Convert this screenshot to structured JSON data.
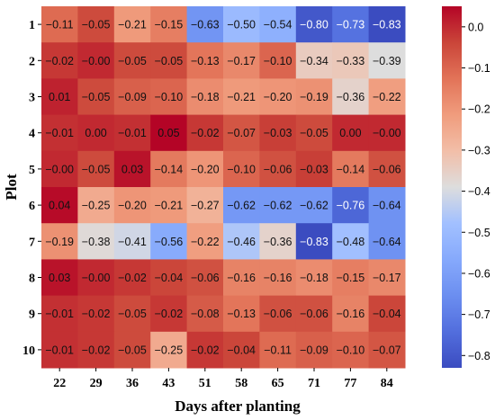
{
  "chart_data": {
    "type": "heatmap",
    "xlabel": "Days after planting",
    "ylabel": "Plot",
    "x_categories": [
      "22",
      "29",
      "36",
      "43",
      "51",
      "58",
      "65",
      "71",
      "77",
      "84"
    ],
    "y_categories": [
      "1",
      "2",
      "3",
      "4",
      "5",
      "6",
      "7",
      "8",
      "9",
      "10"
    ],
    "values": [
      [
        -0.11,
        -0.05,
        -0.21,
        -0.15,
        -0.63,
        -0.5,
        -0.54,
        -0.8,
        -0.73,
        -0.83
      ],
      [
        -0.02,
        -0.0,
        -0.05,
        -0.05,
        -0.13,
        -0.17,
        -0.1,
        -0.34,
        -0.33,
        -0.39
      ],
      [
        0.01,
        -0.05,
        -0.09,
        -0.1,
        -0.18,
        -0.21,
        -0.2,
        -0.19,
        -0.36,
        -0.22
      ],
      [
        -0.01,
        0.0,
        -0.01,
        0.05,
        -0.02,
        -0.07,
        -0.03,
        -0.05,
        0.0,
        -0.0
      ],
      [
        -0.0,
        -0.05,
        0.03,
        -0.14,
        -0.2,
        -0.1,
        -0.06,
        -0.03,
        -0.14,
        -0.06
      ],
      [
        0.04,
        -0.25,
        -0.2,
        -0.21,
        -0.27,
        -0.62,
        -0.62,
        -0.62,
        -0.76,
        -0.64
      ],
      [
        -0.19,
        -0.38,
        -0.41,
        -0.56,
        -0.22,
        -0.46,
        -0.36,
        -0.83,
        -0.48,
        -0.64
      ],
      [
        0.03,
        -0.0,
        -0.02,
        -0.04,
        -0.06,
        -0.16,
        -0.16,
        -0.18,
        -0.15,
        -0.17
      ],
      [
        -0.01,
        -0.02,
        -0.05,
        -0.02,
        -0.08,
        -0.13,
        -0.06,
        -0.06,
        -0.16,
        -0.04
      ],
      [
        -0.01,
        -0.02,
        -0.05,
        -0.25,
        -0.02,
        -0.04,
        -0.11,
        -0.09,
        -0.1,
        -0.07
      ]
    ],
    "labels": [
      [
        "−0.11",
        "−0.05",
        "−0.21",
        "−0.15",
        "−0.63",
        "−0.50",
        "−0.54",
        "−0.80",
        "−0.73",
        "−0.83"
      ],
      [
        "−0.02",
        "−0.00",
        "−0.05",
        "−0.05",
        "−0.13",
        "−0.17",
        "−0.10",
        "−0.34",
        "−0.33",
        "−0.39"
      ],
      [
        "0.01",
        "−0.05",
        "−0.09",
        "−0.10",
        "−0.18",
        "−0.21",
        "−0.20",
        "−0.19",
        "−0.36",
        "−0.22"
      ],
      [
        "−0.01",
        "0.00",
        "−0.01",
        "0.05",
        "−0.02",
        "−0.07",
        "−0.03",
        "−0.05",
        "0.00",
        "−0.00"
      ],
      [
        "−0.00",
        "−0.05",
        "0.03",
        "−0.14",
        "−0.20",
        "−0.10",
        "−0.06",
        "−0.03",
        "−0.14",
        "−0.06"
      ],
      [
        "0.04",
        "−0.25",
        "−0.20",
        "−0.21",
        "−0.27",
        "−0.62",
        "−0.62",
        "−0.62",
        "−0.76",
        "−0.64"
      ],
      [
        "−0.19",
        "−0.38",
        "−0.41",
        "−0.56",
        "−0.22",
        "−0.46",
        "−0.36",
        "−0.83",
        "−0.48",
        "−0.64"
      ],
      [
        "0.03",
        "−0.00",
        "−0.02",
        "−0.04",
        "−0.06",
        "−0.16",
        "−0.16",
        "−0.18",
        "−0.15",
        "−0.17"
      ],
      [
        "−0.01",
        "−0.02",
        "−0.05",
        "−0.02",
        "−0.08",
        "−0.13",
        "−0.06",
        "−0.06",
        "−0.16",
        "−0.04"
      ],
      [
        "−0.01",
        "−0.02",
        "−0.05",
        "−0.25",
        "−0.02",
        "−0.04",
        "−0.11",
        "−0.09",
        "−0.10",
        "−0.07"
      ]
    ],
    "colorbar": {
      "vmin": -0.83,
      "vmax": 0.05,
      "ticks": [
        0.0,
        -0.1,
        -0.2,
        -0.3,
        -0.4,
        -0.5,
        -0.6,
        -0.7,
        -0.8
      ],
      "tick_labels": [
        "0.0",
        "−0.1",
        "−0.2",
        "−0.3",
        "−0.4",
        "−0.5",
        "−0.6",
        "−0.7",
        "−0.8"
      ],
      "colormap": "coolwarm"
    }
  }
}
